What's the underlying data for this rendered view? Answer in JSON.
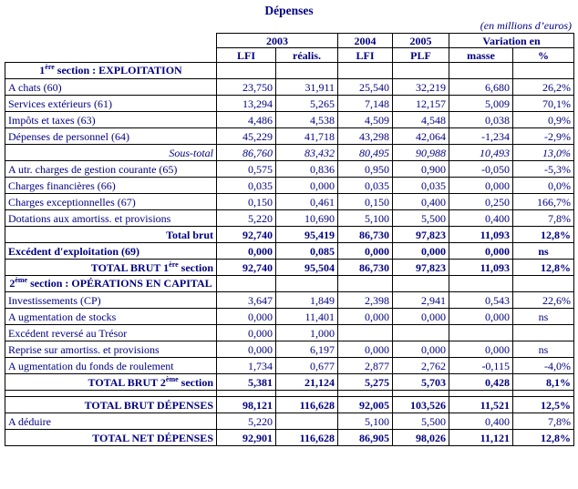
{
  "page": {
    "title": "Dépenses",
    "unit_note": "(en millions d’euros)"
  },
  "header": {
    "y2003": "2003",
    "y2004": "2004",
    "y2005": "2005",
    "variation": "Variation en",
    "sub": [
      "LFI",
      "réalis.",
      "LFI",
      "PLF",
      "masse",
      "%"
    ]
  },
  "rows": [
    {
      "id": "section-exploitation",
      "style": "section",
      "label": [
        {
          "t": "1"
        },
        {
          "t": "ère",
          "sup": true
        },
        {
          "t": " section : EXPLOITATION"
        }
      ],
      "cells": [
        "",
        "",
        "",
        "",
        "",
        ""
      ]
    },
    {
      "id": "achats",
      "style": "normal",
      "label": [
        {
          "t": "A chats (60)"
        }
      ],
      "cells": [
        "23,750",
        "31,911",
        "25,540",
        "32,219",
        "6,680",
        "26,2%"
      ]
    },
    {
      "id": "services-exterieurs",
      "style": "normal",
      "label": [
        {
          "t": "Services extérieurs (61)"
        }
      ],
      "cells": [
        "13,294",
        "5,265",
        "7,148",
        "12,157",
        "5,009",
        "70,1%"
      ]
    },
    {
      "id": "impots-taxes",
      "style": "normal",
      "label": [
        {
          "t": "Impôts et taxes (63)"
        }
      ],
      "cells": [
        "4,486",
        "4,538",
        "4,509",
        "4,548",
        "0,038",
        "0,9%"
      ]
    },
    {
      "id": "depenses-personnel",
      "style": "normal",
      "label": [
        {
          "t": "Dépenses de personnel (64)"
        }
      ],
      "cells": [
        "45,229",
        "41,718",
        "43,298",
        "42,064",
        "-1,234",
        "-2,9%"
      ]
    },
    {
      "id": "sous-total",
      "style": "italic",
      "align": "right",
      "label": [
        {
          "t": "Sous-total"
        }
      ],
      "cells": [
        "86,760",
        "83,432",
        "80,495",
        "90,988",
        "10,493",
        "13,0%"
      ]
    },
    {
      "id": "autres-charges-gestion",
      "style": "normal",
      "label": [
        {
          "t": "A utr. charges de gestion courante (65)"
        }
      ],
      "cells": [
        "0,575",
        "0,836",
        "0,950",
        "0,900",
        "-0,050",
        "-5,3%"
      ]
    },
    {
      "id": "charges-financieres",
      "style": "normal",
      "label": [
        {
          "t": "Charges financières (66)"
        }
      ],
      "cells": [
        "0,035",
        "0,000",
        "0,035",
        "0,035",
        "0,000",
        "0,0%"
      ]
    },
    {
      "id": "charges-exceptionnelles",
      "style": "normal",
      "label": [
        {
          "t": "Charges exceptionnelles (67)"
        }
      ],
      "cells": [
        "0,150",
        "0,461",
        "0,150",
        "0,400",
        "0,250",
        "166,7%"
      ]
    },
    {
      "id": "dotations-amortiss",
      "style": "normal",
      "label": [
        {
          "t": "Dotations aux amortiss. et provisions"
        }
      ],
      "cells": [
        "5,220",
        "10,690",
        "5,100",
        "5,500",
        "0,400",
        "7,8%"
      ]
    },
    {
      "id": "total-brut",
      "style": "bold",
      "align": "right",
      "label": [
        {
          "t": "Total brut"
        }
      ],
      "cells": [
        "92,740",
        "95,419",
        "86,730",
        "97,823",
        "11,093",
        "12,8%"
      ]
    },
    {
      "id": "excedent-exploitation",
      "style": "bold",
      "label": [
        {
          "t": "Excédent d'exploitation (69)"
        }
      ],
      "cells": [
        "0,000",
        "0,085",
        "0,000",
        "0,000",
        "0,000",
        "ns"
      ]
    },
    {
      "id": "total-brut-section1",
      "style": "bold",
      "align": "right",
      "label": [
        {
          "t": "TOTAL BRUT 1"
        },
        {
          "t": "ère",
          "sup": true
        },
        {
          "t": " section"
        }
      ],
      "cells": [
        "92,740",
        "95,504",
        "86,730",
        "97,823",
        "11,093",
        "12,8%"
      ]
    },
    {
      "id": "section-operations-capital",
      "style": "section",
      "label": [
        {
          "t": "2"
        },
        {
          "t": "ème",
          "sup": true
        },
        {
          "t": " section : OPÉRATIONS EN CAPITAL"
        }
      ],
      "cells": [
        "",
        "",
        "",
        "",
        "",
        ""
      ]
    },
    {
      "id": "investissements",
      "style": "normal",
      "label": [
        {
          "t": "Investissements (CP)"
        }
      ],
      "cells": [
        "3,647",
        "1,849",
        "2,398",
        "2,941",
        "0,543",
        "22,6%"
      ]
    },
    {
      "id": "augmentation-stocks",
      "style": "normal",
      "label": [
        {
          "t": "A ugmentation de stocks"
        }
      ],
      "cells": [
        "0,000",
        "11,401",
        "0,000",
        "0,000",
        "0,000",
        "ns"
      ]
    },
    {
      "id": "excedent-tresor",
      "style": "normal",
      "label": [
        {
          "t": "Excédent reversé au Trésor"
        }
      ],
      "cells": [
        "0,000",
        "1,000",
        "",
        "",
        "",
        ""
      ]
    },
    {
      "id": "reprise-amortiss",
      "style": "normal",
      "label": [
        {
          "t": "Reprise sur amortiss. et provisions"
        }
      ],
      "cells": [
        "0,000",
        "6,197",
        "0,000",
        "0,000",
        "0,000",
        "ns"
      ]
    },
    {
      "id": "augmentation-fonds-roulement",
      "style": "normal",
      "label": [
        {
          "t": "A ugmentation du fonds de roulement"
        }
      ],
      "cells": [
        "1,734",
        "0,677",
        "2,877",
        "2,762",
        "-0,115",
        "-4,0%"
      ]
    },
    {
      "id": "total-brut-section2",
      "style": "bold",
      "align": "right",
      "label": [
        {
          "t": "TOTAL BRUT 2"
        },
        {
          "t": "ème",
          "sup": true
        },
        {
          "t": " section"
        }
      ],
      "cells": [
        "5,381",
        "21,124",
        "5,275",
        "5,703",
        "0,428",
        "8,1%"
      ]
    },
    {
      "id": "spacer",
      "style": "spacer",
      "label": [],
      "cells": [
        "",
        "",
        "",
        "",
        "",
        ""
      ]
    },
    {
      "id": "total-brut-depenses",
      "style": "bold",
      "align": "right",
      "label": [
        {
          "t": "TOTAL BRUT DÉPENSES"
        }
      ],
      "cells": [
        "98,121",
        "116,628",
        "92,005",
        "103,526",
        "11,521",
        "12,5%"
      ]
    },
    {
      "id": "a-deduire",
      "style": "normal",
      "label": [
        {
          "t": "A déduire"
        }
      ],
      "cells": [
        "5,220",
        "",
        "5,100",
        "5,500",
        "0,400",
        "7,8%"
      ]
    },
    {
      "id": "total-net-depenses",
      "style": "bold",
      "align": "right",
      "label": [
        {
          "t": "TOTAL NET DÉPENSES"
        }
      ],
      "cells": [
        "92,901",
        "116,628",
        "86,905",
        "98,026",
        "11,121",
        "12,8%"
      ]
    }
  ]
}
